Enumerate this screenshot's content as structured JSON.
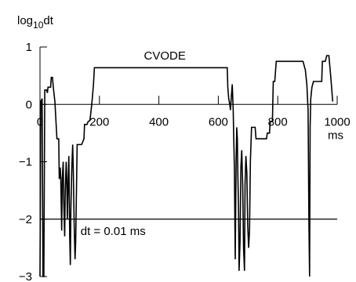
{
  "chart_data": {
    "type": "line",
    "title": "",
    "ylabel": {
      "base": "log",
      "subscript": "10",
      "suffix": "dt"
    },
    "xlabel": "ms",
    "xlim": [
      0,
      1000
    ],
    "ylim": [
      -3,
      1
    ],
    "x_ticks": [
      {
        "value": 0,
        "label": "0"
      },
      {
        "value": 200,
        "label": "200"
      },
      {
        "value": 400,
        "label": "400"
      },
      {
        "value": 600,
        "label": "600"
      },
      {
        "value": 800,
        "label": "800"
      },
      {
        "value": 1000,
        "label": "1000"
      }
    ],
    "y_ticks": [
      {
        "value": 1,
        "label": "1"
      },
      {
        "value": 0,
        "label": "0"
      },
      {
        "value": -1,
        "label": "−1"
      },
      {
        "value": -2,
        "label": "−2"
      },
      {
        "value": -3,
        "label": "−3"
      }
    ],
    "reference_line": {
      "y": -2,
      "label": "dt = 0.01 ms"
    },
    "annotations": [
      {
        "text": "CVODE",
        "x": 420,
        "y": 0.78
      }
    ],
    "series": [
      {
        "name": "",
        "color": "#000000",
        "points": [
          [
            0,
            -3
          ],
          [
            3,
            0.05
          ],
          [
            7,
            0.1
          ],
          [
            10,
            -3
          ],
          [
            13,
            -3
          ],
          [
            16,
            0.25
          ],
          [
            22,
            0.25
          ],
          [
            25,
            0.2
          ],
          [
            27,
            0.3
          ],
          [
            36,
            0.3
          ],
          [
            38,
            0.47
          ],
          [
            42,
            0.47
          ],
          [
            45,
            0.28
          ],
          [
            50,
            0.05
          ],
          [
            55,
            -0.4
          ],
          [
            57,
            -0.6
          ],
          [
            63,
            -0.6
          ],
          [
            65,
            -1.3
          ],
          [
            68,
            -1.1
          ],
          [
            70,
            -1.3
          ],
          [
            73,
            -2.2
          ],
          [
            75,
            -1.3
          ],
          [
            78,
            -1.0
          ],
          [
            80,
            -1.7
          ],
          [
            83,
            -2.3
          ],
          [
            85,
            -1.5
          ],
          [
            88,
            -1.0
          ],
          [
            90,
            -1.3
          ],
          [
            92,
            -2.0
          ],
          [
            95,
            -1.3
          ],
          [
            97,
            -0.9
          ],
          [
            100,
            -2.3
          ],
          [
            102,
            -2.8
          ],
          [
            104,
            -1.8
          ],
          [
            107,
            -1.1
          ],
          [
            110,
            -0.7
          ],
          [
            112,
            -1.1
          ],
          [
            115,
            -2.1
          ],
          [
            118,
            -2.7
          ],
          [
            120,
            -2.4
          ],
          [
            125,
            -0.7
          ],
          [
            140,
            -0.7
          ],
          [
            148,
            -0.6
          ],
          [
            150,
            -0.35
          ],
          [
            158,
            -0.35
          ],
          [
            162,
            -0.3
          ],
          [
            168,
            -0.28
          ],
          [
            172,
            -0.1
          ],
          [
            176,
            0.1
          ],
          [
            180,
            0.35
          ],
          [
            183,
            0.64
          ],
          [
            630,
            0.64
          ],
          [
            632,
            0.3
          ],
          [
            635,
            0.1
          ],
          [
            638,
            0.02
          ],
          [
            641,
            -0.1
          ],
          [
            644,
            0.15
          ],
          [
            647,
            0.35
          ],
          [
            650,
            -0.1
          ],
          [
            652,
            -0.6
          ],
          [
            654,
            -1.1
          ],
          [
            657,
            -2.7
          ],
          [
            660,
            -1.0
          ],
          [
            662,
            -0.4
          ],
          [
            664,
            -0.6
          ],
          [
            666,
            -1.3
          ],
          [
            668,
            -1.8
          ],
          [
            670,
            -2.9
          ],
          [
            673,
            -2.4
          ],
          [
            676,
            -1.1
          ],
          [
            679,
            -0.8
          ],
          [
            682,
            -1.4
          ],
          [
            685,
            -2.5
          ],
          [
            688,
            -2.9
          ],
          [
            690,
            -1.4
          ],
          [
            693,
            -0.9
          ],
          [
            696,
            -1.2
          ],
          [
            699,
            -2.1
          ],
          [
            702,
            -2.5
          ],
          [
            705,
            -2.2
          ],
          [
            708,
            -1.0
          ],
          [
            712,
            -0.4
          ],
          [
            724,
            -0.4
          ],
          [
            727,
            -0.6
          ],
          [
            762,
            -0.6
          ],
          [
            765,
            -0.5
          ],
          [
            772,
            -0.5
          ],
          [
            775,
            -0.3
          ],
          [
            782,
            -0.3
          ],
          [
            785,
            0.4
          ],
          [
            790,
            0.4
          ],
          [
            795,
            0.75
          ],
          [
            885,
            0.75
          ],
          [
            893,
            0.6
          ],
          [
            898,
            0.35
          ],
          [
            902,
            -0.1
          ],
          [
            905,
            -2.1
          ],
          [
            907,
            -3.0
          ],
          [
            909,
            -0.4
          ],
          [
            911,
            0.1
          ],
          [
            915,
            0.3
          ],
          [
            920,
            0.4
          ],
          [
            948,
            0.4
          ],
          [
            950,
            0.75
          ],
          [
            960,
            0.75
          ],
          [
            965,
            0.85
          ],
          [
            972,
            0.85
          ],
          [
            978,
            0.5
          ],
          [
            985,
            0.05
          ]
        ]
      }
    ]
  }
}
